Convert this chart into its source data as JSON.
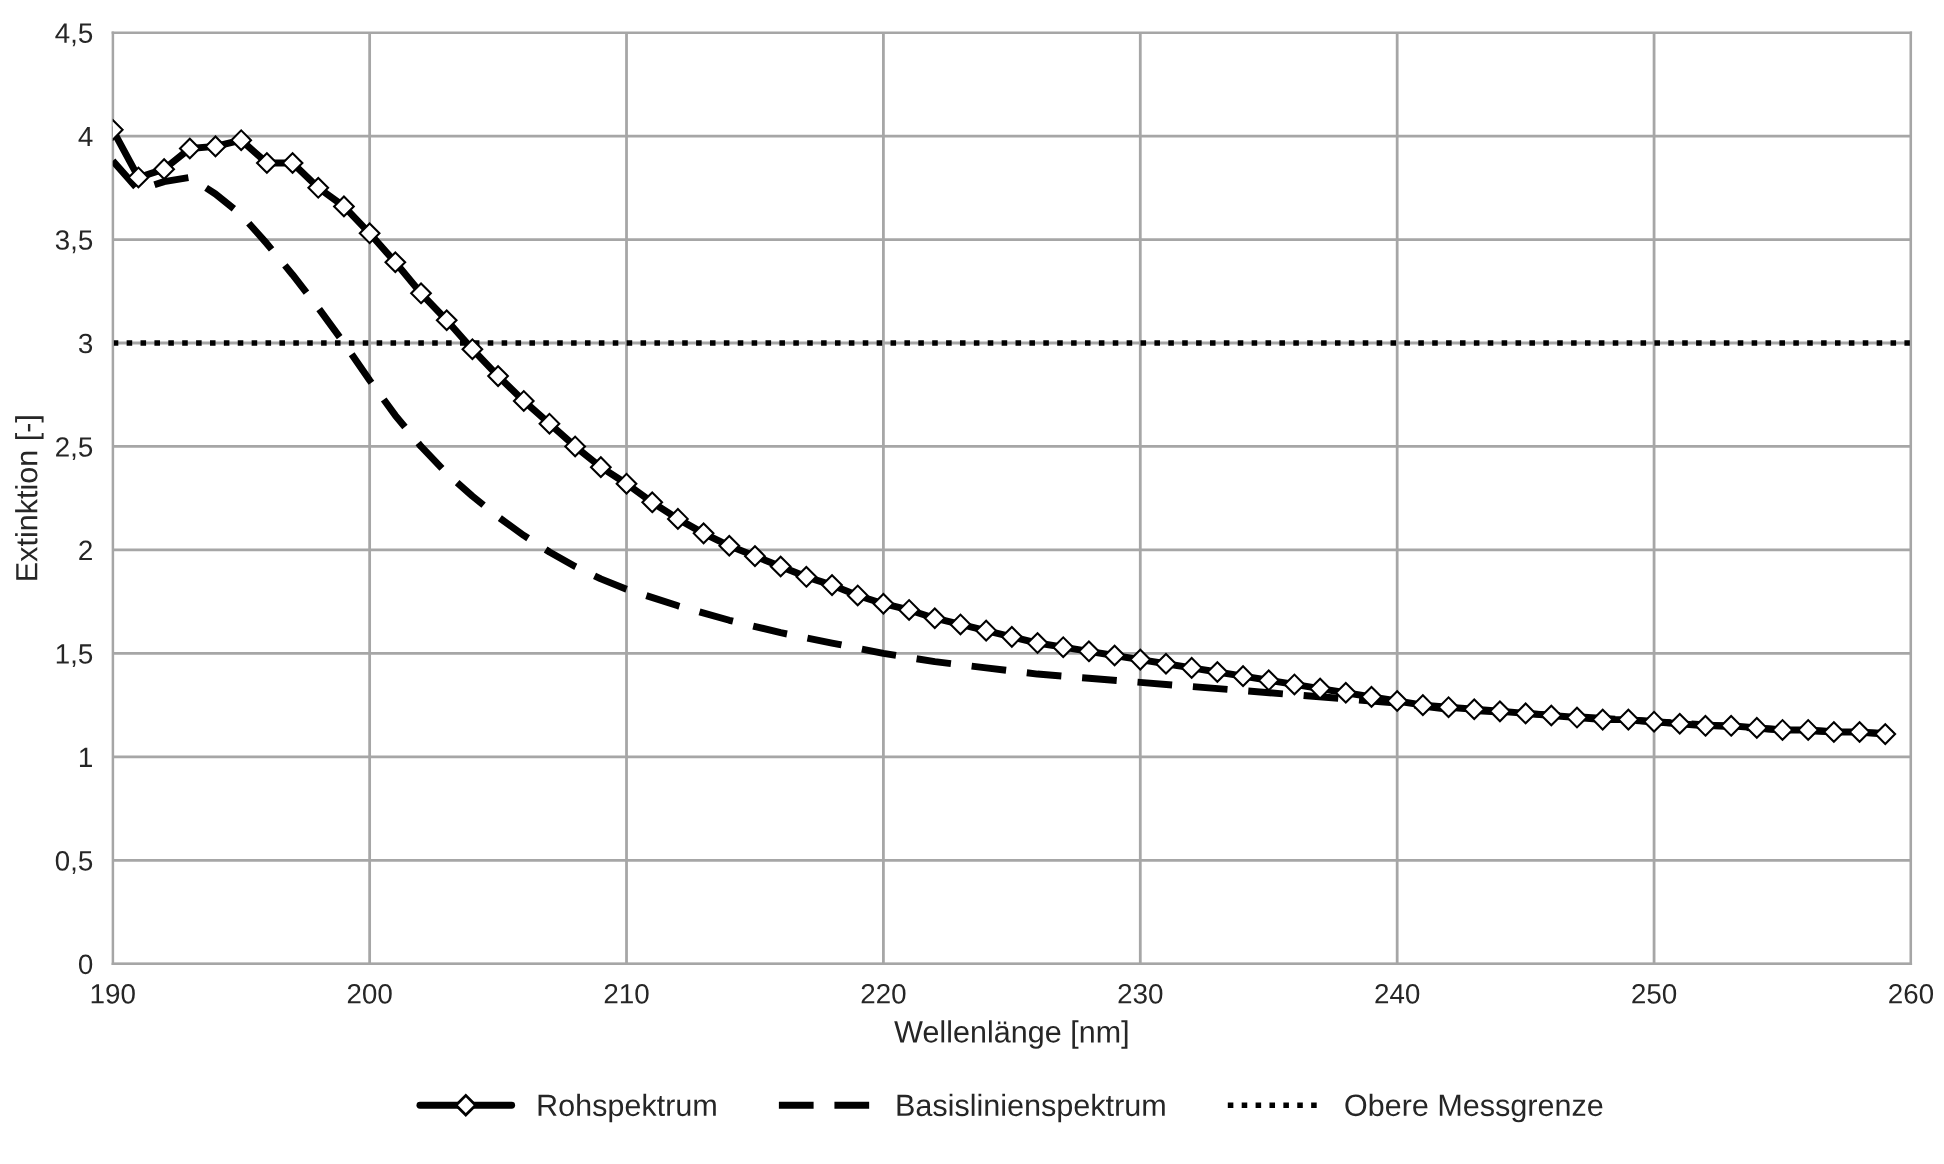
{
  "chart_data": {
    "type": "line",
    "xlabel": "Wellenlänge [nm]",
    "ylabel": "Extinktion [-]",
    "xlim": [
      190,
      260
    ],
    "xticks": [
      190,
      200,
      210,
      220,
      230,
      240,
      250,
      260
    ],
    "ylim": [
      0,
      4.5
    ],
    "yticks": [
      {
        "value": 0,
        "label": "0"
      },
      {
        "value": 0.5,
        "label": "0,5"
      },
      {
        "value": 1,
        "label": "1"
      },
      {
        "value": 1.5,
        "label": "1,5"
      },
      {
        "value": 2,
        "label": "2"
      },
      {
        "value": 2.5,
        "label": "2,5"
      },
      {
        "value": 3,
        "label": "3"
      },
      {
        "value": 3.5,
        "label": "3,5"
      },
      {
        "value": 4,
        "label": "4"
      },
      {
        "value": 4.5,
        "label": "4,5"
      }
    ],
    "grid": true,
    "legend": "bottom",
    "series": [
      {
        "name": "Rohspektrum",
        "color": "#000000",
        "marker": "diamond",
        "line_style": "solid",
        "x": [
          190,
          191,
          192,
          193,
          194,
          195,
          196,
          197,
          198,
          199,
          200,
          201,
          202,
          203,
          204,
          205,
          206,
          207,
          208,
          209,
          210,
          211,
          212,
          213,
          214,
          215,
          216,
          217,
          218,
          219,
          220,
          221,
          222,
          223,
          224,
          225,
          226,
          227,
          228,
          229,
          230,
          231,
          232,
          233,
          234,
          235,
          236,
          237,
          238,
          239,
          240,
          241,
          242,
          243,
          244,
          245,
          246,
          247,
          248,
          249,
          250,
          251,
          252,
          253,
          254,
          255,
          256,
          257,
          258,
          259
        ],
        "values": [
          4.03,
          3.8,
          3.84,
          3.94,
          3.95,
          3.98,
          3.87,
          3.87,
          3.75,
          3.66,
          3.53,
          3.39,
          3.24,
          3.11,
          2.97,
          2.84,
          2.72,
          2.61,
          2.5,
          2.4,
          2.32,
          2.23,
          2.15,
          2.08,
          2.02,
          1.97,
          1.92,
          1.87,
          1.83,
          1.78,
          1.74,
          1.71,
          1.67,
          1.64,
          1.61,
          1.58,
          1.55,
          1.53,
          1.51,
          1.49,
          1.47,
          1.45,
          1.43,
          1.41,
          1.39,
          1.37,
          1.35,
          1.33,
          1.31,
          1.29,
          1.27,
          1.25,
          1.24,
          1.23,
          1.22,
          1.21,
          1.2,
          1.19,
          1.18,
          1.18,
          1.17,
          1.16,
          1.15,
          1.15,
          1.14,
          1.13,
          1.13,
          1.12,
          1.12,
          1.11
        ]
      },
      {
        "name": "Basislinienspektrum",
        "color": "#000000",
        "marker": "none",
        "line_style": "dashed",
        "x": [
          190,
          191,
          192,
          193,
          194,
          195,
          196,
          197,
          198,
          199,
          200,
          201,
          202,
          203,
          204,
          205,
          206,
          207,
          208,
          209,
          210,
          212,
          214,
          216,
          218,
          220,
          222,
          224,
          226,
          228,
          230,
          232,
          234,
          236,
          238,
          240,
          242,
          245,
          250,
          255,
          260
        ],
        "values": [
          3.88,
          3.74,
          3.78,
          3.8,
          3.72,
          3.62,
          3.48,
          3.33,
          3.17,
          3.0,
          2.82,
          2.65,
          2.5,
          2.37,
          2.26,
          2.16,
          2.07,
          1.99,
          1.92,
          1.86,
          1.81,
          1.73,
          1.66,
          1.6,
          1.55,
          1.5,
          1.46,
          1.43,
          1.4,
          1.38,
          1.36,
          1.34,
          1.32,
          1.3,
          1.28,
          1.26,
          1.23,
          1.21,
          1.17,
          1.13,
          1.11
        ]
      }
    ],
    "ref_lines": [
      {
        "axis": "y",
        "value": 3,
        "label": "Obere Messgrenze",
        "color": "#000000",
        "line_style": "dotted"
      }
    ]
  }
}
